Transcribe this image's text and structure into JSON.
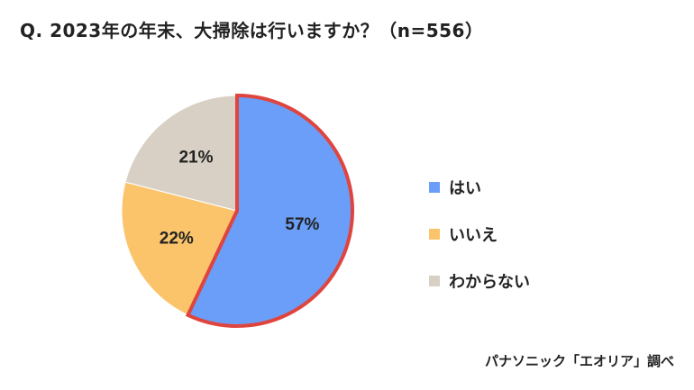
{
  "chart_data": {
    "type": "pie",
    "title": "Q. 2023年の年末、大掃除は行いますか？（n=556）",
    "categories": [
      "はい",
      "いいえ",
      "わからない"
    ],
    "values": [
      57,
      22,
      21
    ],
    "data_labels": [
      "57%",
      "22%",
      "21%"
    ],
    "colors": [
      "#6a9ef8",
      "#fbc46b",
      "#d8d0c4"
    ],
    "highlight_color": "#e0443e",
    "highlighted_slice": 0,
    "legend_placement": "right",
    "source": "パナソニック「エオリア」調べ"
  }
}
